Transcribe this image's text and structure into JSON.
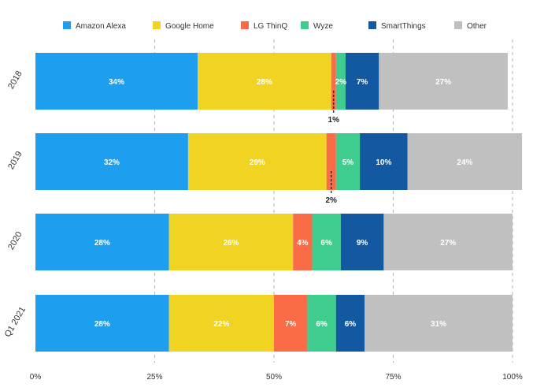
{
  "chart_data": {
    "type": "bar",
    "orientation": "horizontal",
    "stacked": true,
    "percent": true,
    "title": "",
    "xlabel": "",
    "ylabel": "",
    "xlim": [
      0,
      100
    ],
    "x_ticks": [
      "0%",
      "25%",
      "50%",
      "75%",
      "100%"
    ],
    "grid": "vertical-dashed",
    "legend_position": "top",
    "categories": [
      "2018",
      "2019",
      "2020",
      "Q1 2021"
    ],
    "series": [
      {
        "name": "Amazon Alexa",
        "color": "#1E9EEE",
        "values": [
          34,
          32,
          28,
          28
        ],
        "labels": [
          "34%",
          "32%",
          "28%",
          "28%"
        ]
      },
      {
        "name": "Google Home",
        "color": "#F1D421",
        "values": [
          28,
          29,
          26,
          22
        ],
        "labels": [
          "28%",
          "29%",
          "26%",
          "22%"
        ]
      },
      {
        "name": "LG ThinQ",
        "color": "#FA6B47",
        "values": [
          1,
          2,
          4,
          7
        ],
        "labels": [
          "1%",
          "2%",
          "4%",
          "7%"
        ]
      },
      {
        "name": "Wyze",
        "color": "#3ECD8E",
        "values": [
          2,
          5,
          6,
          6
        ],
        "labels": [
          "2%",
          "5%",
          "6%",
          "6%"
        ]
      },
      {
        "name": "SmartThings",
        "color": "#1359A2",
        "values": [
          7,
          10,
          9,
          6
        ],
        "labels": [
          "7%",
          "10%",
          "9%",
          "6%"
        ]
      },
      {
        "name": "Other",
        "color": "#C0C0C0",
        "values": [
          27,
          24,
          27,
          31
        ],
        "labels": [
          "27%",
          "24%",
          "27%",
          "31%"
        ]
      }
    ],
    "external_labels": [
      {
        "category": "2018",
        "series": "LG ThinQ",
        "text": "1%"
      },
      {
        "category": "2019",
        "series": "LG ThinQ",
        "text": "2%"
      }
    ]
  }
}
